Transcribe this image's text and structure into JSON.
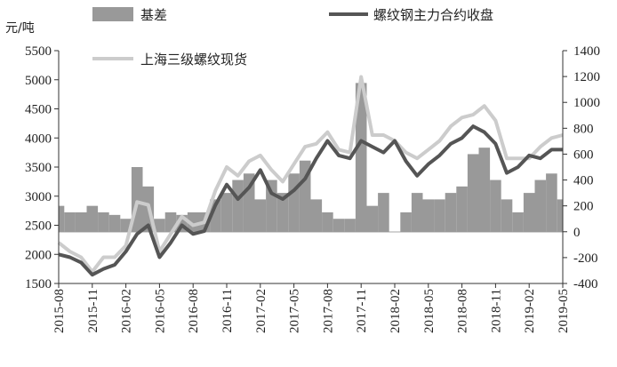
{
  "chart_data": {
    "type": "line",
    "title": "",
    "y_left_unit": "元/吨",
    "y_left_ticks": [
      1500,
      2000,
      2500,
      3000,
      3500,
      4000,
      4500,
      5000,
      5500
    ],
    "y_left_range": [
      1500,
      5500
    ],
    "y_right_ticks": [
      -400,
      -200,
      0,
      200,
      400,
      600,
      800,
      1000,
      1200,
      1400
    ],
    "y_right_range": [
      -400,
      1400
    ],
    "x_tick_labels": [
      "2015-08",
      "2015-11",
      "2016-02",
      "2016-05",
      "2016-08",
      "2016-11",
      "2017-02",
      "2017-05",
      "2017-08",
      "2017-11",
      "2018-02",
      "2018-05",
      "2018-08",
      "2018-11",
      "2019-02",
      "2019-05"
    ],
    "x_range": [
      "2015-08",
      "2019-05"
    ],
    "colors": {
      "basis": "#999999",
      "futures": "#555555",
      "spot": "#cccccc"
    },
    "legend": [
      {
        "key": "basis",
        "label": "基差",
        "style": "area"
      },
      {
        "key": "futures",
        "label": "螺纹钢主力合约收盘",
        "style": "line"
      },
      {
        "key": "spot",
        "label": "上海三级螺纹现货",
        "style": "line"
      }
    ],
    "series": [
      {
        "name": "螺纹钢主力合约收盘",
        "axis": "left",
        "x": [
          "2015-08",
          "2015-09",
          "2015-10",
          "2015-11",
          "2015-12",
          "2016-01",
          "2016-02",
          "2016-03",
          "2016-04",
          "2016-05",
          "2016-06",
          "2016-07",
          "2016-08",
          "2016-09",
          "2016-10",
          "2016-11",
          "2016-12",
          "2017-01",
          "2017-02",
          "2017-03",
          "2017-04",
          "2017-05",
          "2017-06",
          "2017-07",
          "2017-08",
          "2017-09",
          "2017-10",
          "2017-11",
          "2017-12",
          "2018-01",
          "2018-02",
          "2018-03",
          "2018-04",
          "2018-05",
          "2018-06",
          "2018-07",
          "2018-08",
          "2018-09",
          "2018-10",
          "2018-11",
          "2018-12",
          "2019-01",
          "2019-02",
          "2019-03",
          "2019-04",
          "2019-05"
        ],
        "values": [
          2000,
          1950,
          1860,
          1650,
          1750,
          1820,
          2050,
          2350,
          2500,
          1950,
          2200,
          2500,
          2350,
          2400,
          2850,
          3200,
          2950,
          3150,
          3450,
          3050,
          2950,
          3100,
          3300,
          3650,
          3950,
          3700,
          3650,
          3950,
          3850,
          3750,
          3950,
          3600,
          3350,
          3550,
          3700,
          3900,
          4000,
          4200,
          4100,
          3900,
          3400,
          3500,
          3700,
          3650,
          3800,
          3800
        ]
      },
      {
        "name": "上海三级螺纹现货",
        "axis": "left",
        "x": [
          "2015-08",
          "2015-09",
          "2015-10",
          "2015-11",
          "2015-12",
          "2016-01",
          "2016-02",
          "2016-03",
          "2016-04",
          "2016-05",
          "2016-06",
          "2016-07",
          "2016-08",
          "2016-09",
          "2016-10",
          "2016-11",
          "2016-12",
          "2017-01",
          "2017-02",
          "2017-03",
          "2017-04",
          "2017-05",
          "2017-06",
          "2017-07",
          "2017-08",
          "2017-09",
          "2017-10",
          "2017-11",
          "2017-12",
          "2018-01",
          "2018-02",
          "2018-03",
          "2018-04",
          "2018-05",
          "2018-06",
          "2018-07",
          "2018-08",
          "2018-09",
          "2018-10",
          "2018-11",
          "2018-12",
          "2019-01",
          "2019-02",
          "2019-03",
          "2019-04",
          "2019-05"
        ],
        "values": [
          2200,
          2050,
          1950,
          1700,
          1950,
          1950,
          2150,
          2900,
          2850,
          2050,
          2350,
          2650,
          2500,
          2550,
          3100,
          3500,
          3350,
          3600,
          3700,
          3450,
          3250,
          3550,
          3850,
          3900,
          4100,
          3800,
          3750,
          5050,
          4050,
          4050,
          3950,
          3750,
          3650,
          3800,
          3950,
          4200,
          4350,
          4400,
          4550,
          4300,
          3650,
          3650,
          3650,
          3850,
          4000,
          4050
        ]
      },
      {
        "name": "基差",
        "axis": "right",
        "x": [
          "2015-08",
          "2015-09",
          "2015-10",
          "2015-11",
          "2015-12",
          "2016-01",
          "2016-02",
          "2016-03",
          "2016-04",
          "2016-05",
          "2016-06",
          "2016-07",
          "2016-08",
          "2016-09",
          "2016-10",
          "2016-11",
          "2016-12",
          "2017-01",
          "2017-02",
          "2017-03",
          "2017-04",
          "2017-05",
          "2017-06",
          "2017-07",
          "2017-08",
          "2017-09",
          "2017-10",
          "2017-11",
          "2017-12",
          "2018-01",
          "2018-02",
          "2018-03",
          "2018-04",
          "2018-05",
          "2018-06",
          "2018-07",
          "2018-08",
          "2018-09",
          "2018-10",
          "2018-11",
          "2018-12",
          "2019-01",
          "2019-02",
          "2019-03",
          "2019-04",
          "2019-05"
        ],
        "values": [
          200,
          150,
          150,
          200,
          150,
          130,
          100,
          500,
          350,
          100,
          150,
          130,
          150,
          150,
          250,
          300,
          400,
          450,
          250,
          400,
          300,
          450,
          550,
          250,
          150,
          100,
          100,
          1150,
          200,
          300,
          0,
          150,
          300,
          250,
          250,
          300,
          350,
          600,
          650,
          400,
          250,
          150,
          300,
          400,
          450,
          250
        ]
      }
    ]
  }
}
